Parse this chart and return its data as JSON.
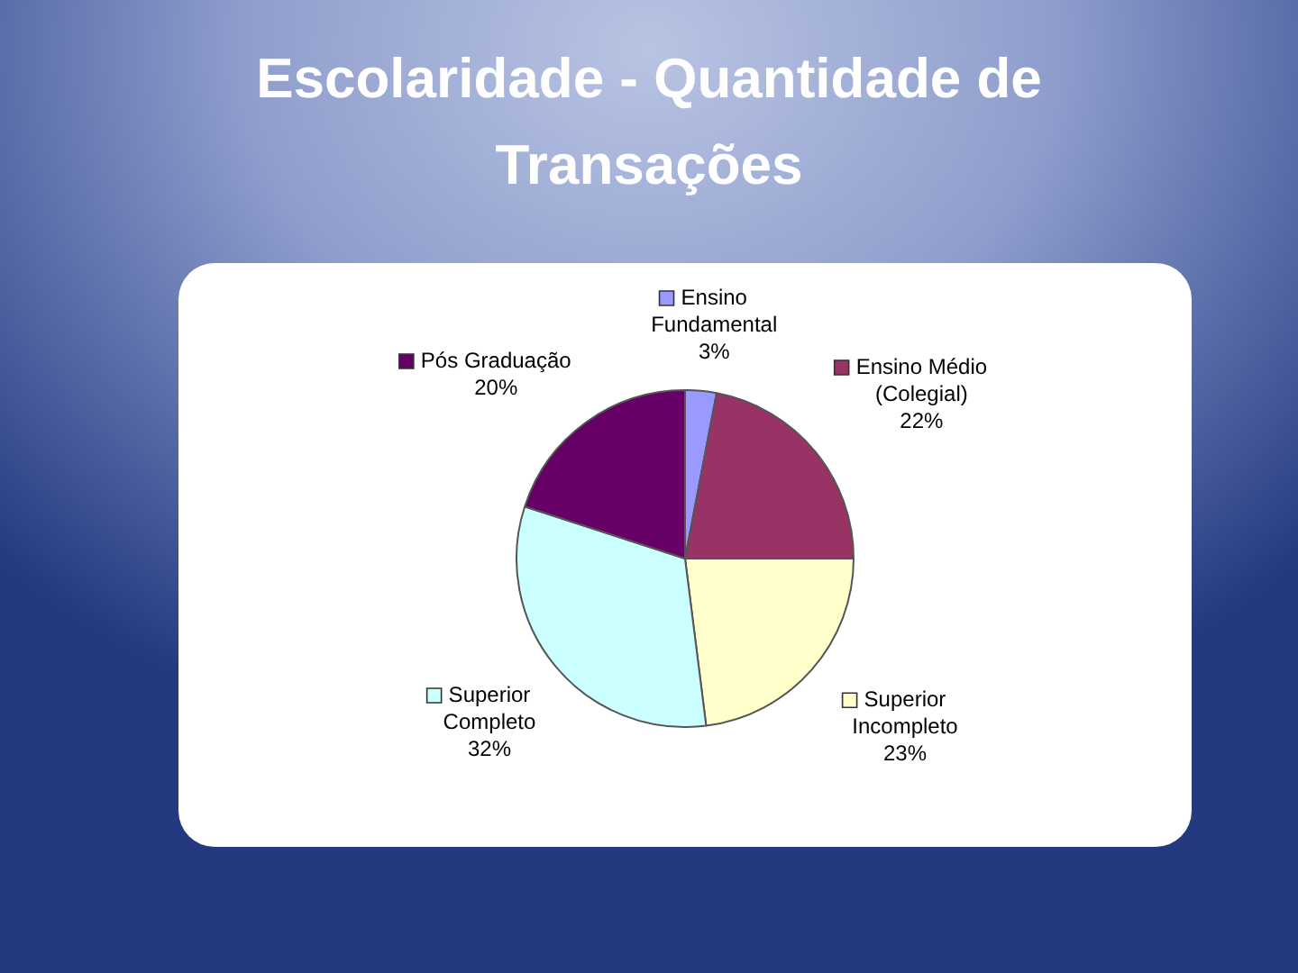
{
  "chart_data": {
    "type": "pie",
    "title": "Escolaridade - Quantidade de Transações",
    "categories": [
      "Ensino Fundamental",
      "Ensino Médio (Colegial)",
      "Superior Incompleto",
      "Superior Completo",
      "Pós Graduação"
    ],
    "values": [
      3,
      22,
      23,
      32,
      20
    ],
    "colors": [
      "#9999ff",
      "#993366",
      "#ffffcc",
      "#ccffff",
      "#660066"
    ],
    "value_labels": [
      "3%",
      "22%",
      "23%",
      "32%",
      "20%"
    ],
    "legend": true
  }
}
